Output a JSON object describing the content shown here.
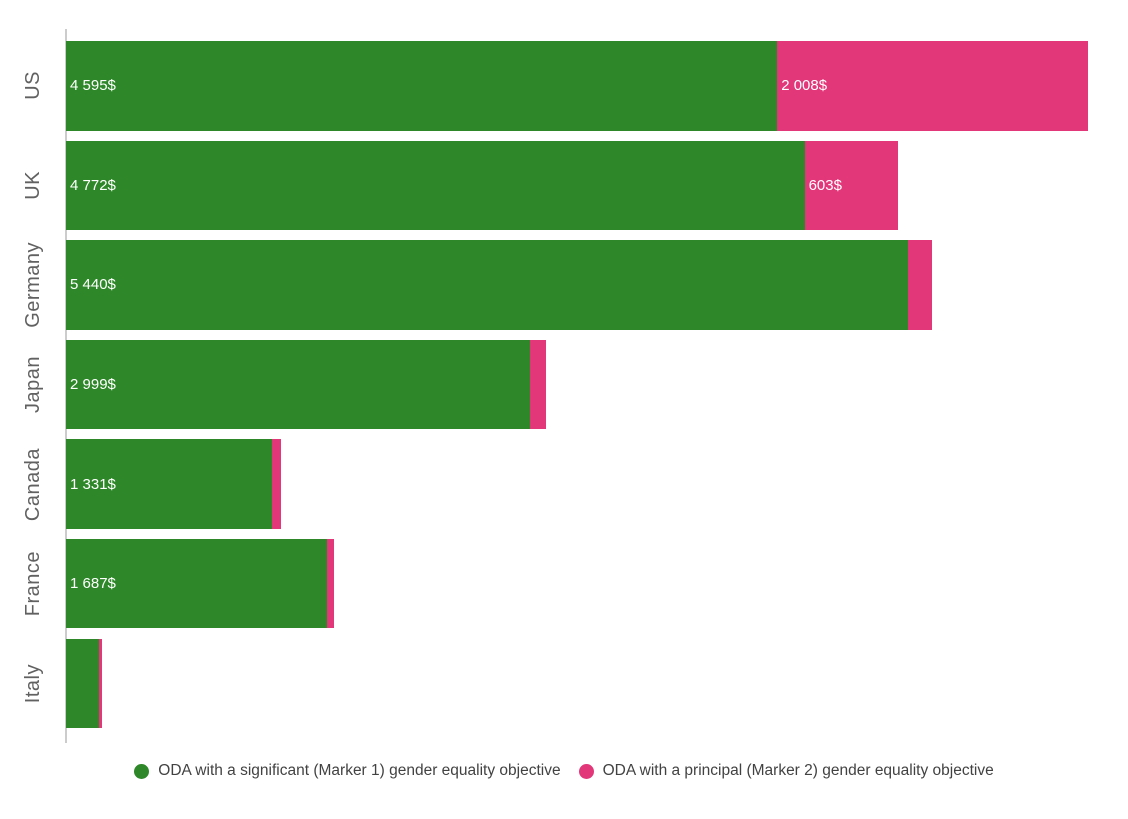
{
  "chart_data": {
    "type": "bar",
    "orientation": "horizontal",
    "stacked": true,
    "title": "",
    "xlabel": "",
    "ylabel": "",
    "xlim": [
      0,
      6603
    ],
    "grid": false,
    "legend_position": "bottom",
    "axis_line_color": "#cccccc",
    "category_label_color": "#616161",
    "value_label_color": "#ffffff",
    "categories": [
      "US",
      "UK",
      "Germany",
      "Japan",
      "Canada",
      "France",
      "Italy"
    ],
    "series": [
      {
        "name": "ODA with a significant (Marker 1) gender equality objective",
        "color": "#2e8829",
        "values": [
          4595,
          4772,
          5440,
          2999,
          1331,
          1687,
          213
        ],
        "labels": [
          "4 595$",
          "4 772$",
          "5 440$",
          "2 999$",
          "1 331$",
          "1 687$",
          ""
        ]
      },
      {
        "name": "ODA with a principal (Marker 2) gender equality objective",
        "color": "#e23779",
        "values": [
          2008,
          603,
          155,
          103,
          55,
          45,
          20
        ],
        "labels": [
          "2 008$",
          "603$",
          "",
          "",
          "",
          "",
          ""
        ]
      }
    ]
  }
}
